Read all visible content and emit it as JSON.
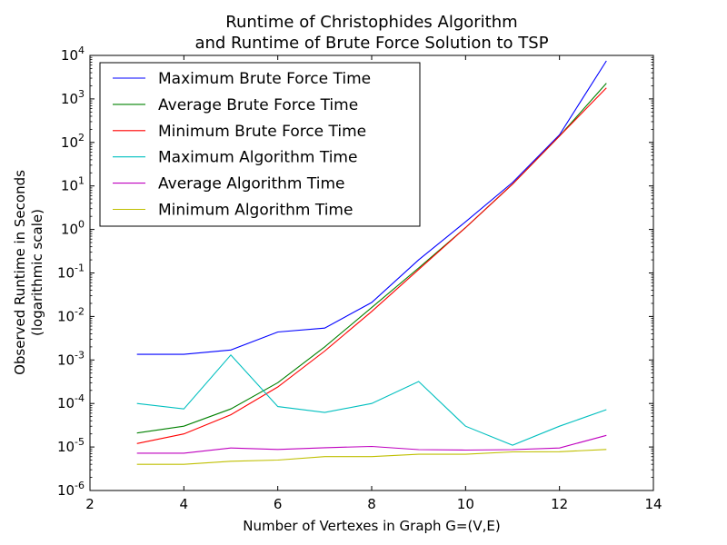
{
  "chart_data": {
    "type": "line",
    "title_line1": "Runtime of Christophides Algorithm",
    "title_line2": "and Runtime of Brute Force Solution to TSP",
    "xlabel": "Number of Vertexes in Graph G=(V,E)",
    "ylabel_line1": "Observed Runtime in Seconds",
    "ylabel_line2": "(logarithmic scale)",
    "xlim": [
      2,
      14
    ],
    "ylim": [
      1e-06,
      10000.0
    ],
    "yscale": "log",
    "grid": false,
    "legend_position": "top-left",
    "xticks": [
      {
        "value": 2,
        "label": "2"
      },
      {
        "value": 4,
        "label": "4"
      },
      {
        "value": 6,
        "label": "6"
      },
      {
        "value": 8,
        "label": "8"
      },
      {
        "value": 10,
        "label": "10"
      },
      {
        "value": 12,
        "label": "12"
      },
      {
        "value": 14,
        "label": "14"
      }
    ],
    "yticks": [
      {
        "value": 1e-06,
        "base": "10",
        "exp": "-6"
      },
      {
        "value": 1e-05,
        "base": "10",
        "exp": "-5"
      },
      {
        "value": 0.0001,
        "base": "10",
        "exp": "-4"
      },
      {
        "value": 0.001,
        "base": "10",
        "exp": "-3"
      },
      {
        "value": 0.01,
        "base": "10",
        "exp": "-2"
      },
      {
        "value": 0.1,
        "base": "10",
        "exp": "-1"
      },
      {
        "value": 1.0,
        "base": "10",
        "exp": "0"
      },
      {
        "value": 10.0,
        "base": "10",
        "exp": "1"
      },
      {
        "value": 100.0,
        "base": "10",
        "exp": "2"
      },
      {
        "value": 1000.0,
        "base": "10",
        "exp": "3"
      },
      {
        "value": 10000.0,
        "base": "10",
        "exp": "4"
      }
    ],
    "x": [
      3,
      4,
      5,
      6,
      7,
      8,
      9,
      10,
      11,
      12,
      13
    ],
    "series": [
      {
        "name": "Maximum Brute Force Time",
        "color": "#0000ff",
        "values": [
          0.00135,
          0.00135,
          0.0017,
          0.0044,
          0.0054,
          0.021,
          0.2,
          1.5,
          12,
          150,
          7500
        ]
      },
      {
        "name": "Average Brute Force Time",
        "color": "#008000",
        "values": [
          2.1e-05,
          3e-05,
          7.5e-05,
          0.0003,
          0.002,
          0.016,
          0.13,
          1.1,
          11,
          140,
          2300
        ]
      },
      {
        "name": "Minimum Brute Force Time",
        "color": "#ff0000",
        "values": [
          1.2e-05,
          2e-05,
          5.5e-05,
          0.00024,
          0.0016,
          0.013,
          0.12,
          1.1,
          11,
          140,
          1800
        ]
      },
      {
        "name": "Maximum Algorithm Time",
        "color": "#00bfbf",
        "values": [
          0.0001,
          7.5e-05,
          0.0013,
          8.5e-05,
          6.2e-05,
          0.0001,
          0.00032,
          3e-05,
          1.1e-05,
          3e-05,
          7.2e-05
        ]
      },
      {
        "name": "Average Algorithm Time",
        "color": "#bf00bf",
        "values": [
          7.2e-06,
          7.2e-06,
          9.5e-06,
          8.8e-06,
          9.6e-06,
          1.03e-05,
          8.7e-06,
          8.5e-06,
          8.7e-06,
          9.5e-06,
          1.85e-05
        ]
      },
      {
        "name": "Minimum Algorithm Time",
        "color": "#bfbf00",
        "values": [
          4e-06,
          4e-06,
          4.7e-06,
          5e-06,
          6e-06,
          6e-06,
          6.8e-06,
          6.8e-06,
          7.7e-06,
          7.8e-06,
          8.8e-06
        ]
      }
    ]
  }
}
